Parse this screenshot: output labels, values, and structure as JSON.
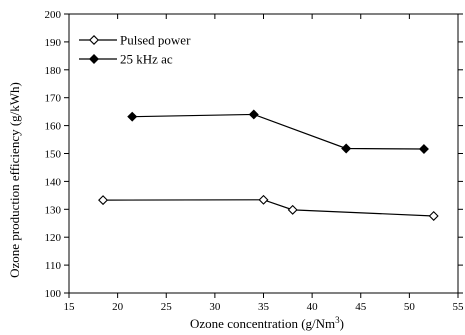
{
  "chart_data": {
    "type": "line",
    "xlabel_main": "Ozone concentration (g/Nm",
    "xlabel_sup": "3",
    "xlabel_close": ")",
    "ylabel": "Ozone production efficiency (g/kWh)",
    "xlim": [
      15,
      55
    ],
    "ylim": [
      100,
      200
    ],
    "xticks": [
      15,
      20,
      25,
      30,
      35,
      40,
      45,
      50,
      55
    ],
    "yticks": [
      100,
      110,
      120,
      130,
      140,
      150,
      160,
      170,
      180,
      190,
      200
    ],
    "grid": false,
    "legend_position": "top-left",
    "series": [
      {
        "name": "Pulsed power",
        "marker": "diamond-open",
        "color": "#000000",
        "x": [
          18.5,
          35.0,
          38.0,
          52.5
        ],
        "y": [
          133.3,
          133.4,
          129.8,
          127.6
        ]
      },
      {
        "name": "25 kHz ac",
        "marker": "diamond-filled",
        "color": "#000000",
        "x": [
          21.5,
          34.0,
          43.5,
          51.5
        ],
        "y": [
          163.2,
          164.0,
          151.8,
          151.6
        ]
      }
    ]
  }
}
